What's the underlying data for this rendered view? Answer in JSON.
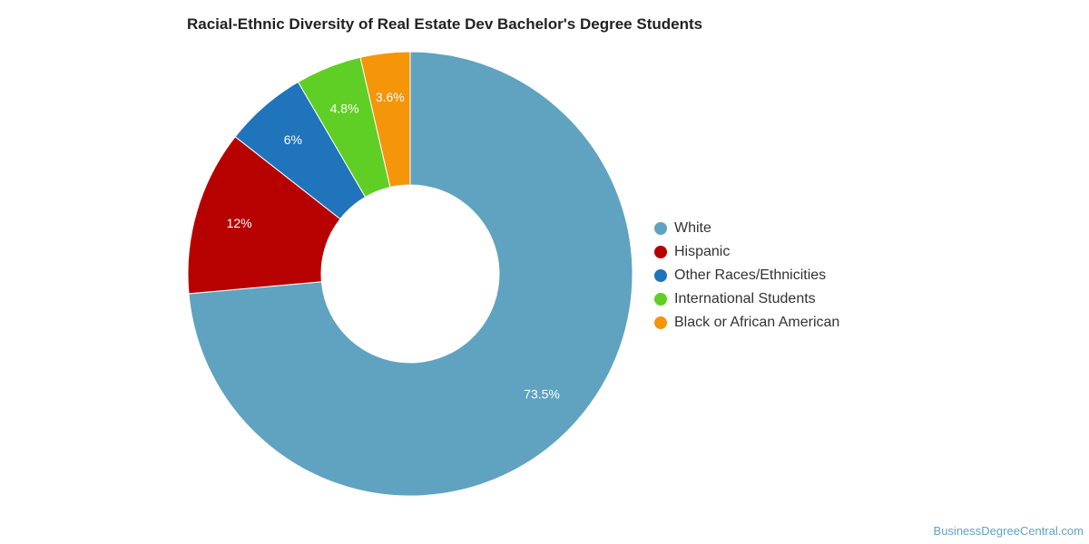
{
  "chart_data": {
    "type": "pie",
    "title": "Racial-Ethnic Diversity of Real Estate Dev Bachelor's Degree Students",
    "series": [
      {
        "name": "White",
        "value": 73.5,
        "label": "73.5%",
        "color": "#5fa3c0"
      },
      {
        "name": "Hispanic",
        "value": 12,
        "label": "12%",
        "color": "#b70000"
      },
      {
        "name": "Other Races/Ethnicities",
        "value": 6,
        "label": "6%",
        "color": "#1f74bb"
      },
      {
        "name": "International Students",
        "value": 4.8,
        "label": "4.8%",
        "color": "#5fcf25"
      },
      {
        "name": "Black or African American",
        "value": 3.6,
        "label": "3.6%",
        "color": "#f5950a"
      }
    ],
    "legend_position": "right"
  },
  "footer": {
    "credit": "BusinessDegreeCentral.com"
  }
}
